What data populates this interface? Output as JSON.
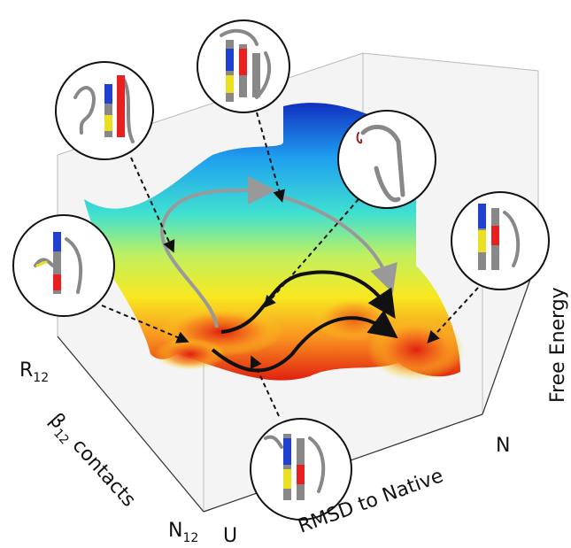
{
  "axes": {
    "beta": {
      "label": {
        "main": "β",
        "sub": "12",
        "rest": " contacts"
      },
      "ticks": [
        {
          "main": "R",
          "sub": "12"
        },
        {
          "main": "N",
          "sub": "12"
        }
      ]
    },
    "rmsd": {
      "label": "RMSD to Native",
      "ticks": [
        "U",
        "N"
      ]
    },
    "energy": {
      "label": "Free Energy"
    }
  }
}
